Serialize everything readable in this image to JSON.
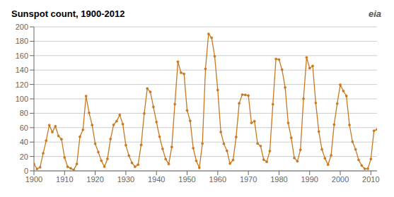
{
  "chart_data": {
    "type": "line",
    "title": "Sunspot count, 1900-2012",
    "annotations": [
      "eia"
    ],
    "x": [
      1900,
      1901,
      1902,
      1903,
      1904,
      1905,
      1906,
      1907,
      1908,
      1909,
      1910,
      1911,
      1912,
      1913,
      1914,
      1915,
      1916,
      1917,
      1918,
      1919,
      1920,
      1921,
      1922,
      1923,
      1924,
      1925,
      1926,
      1927,
      1928,
      1929,
      1930,
      1931,
      1932,
      1933,
      1934,
      1935,
      1936,
      1937,
      1938,
      1939,
      1940,
      1941,
      1942,
      1943,
      1944,
      1945,
      1946,
      1947,
      1948,
      1949,
      1950,
      1951,
      1952,
      1953,
      1954,
      1955,
      1956,
      1957,
      1958,
      1959,
      1960,
      1961,
      1962,
      1963,
      1964,
      1965,
      1966,
      1967,
      1968,
      1969,
      1970,
      1971,
      1972,
      1973,
      1974,
      1975,
      1976,
      1977,
      1978,
      1979,
      1980,
      1981,
      1982,
      1983,
      1984,
      1985,
      1986,
      1987,
      1988,
      1989,
      1990,
      1991,
      1992,
      1993,
      1994,
      1995,
      1996,
      1997,
      1998,
      1999,
      2000,
      2001,
      2002,
      2003,
      2004,
      2005,
      2006,
      2007,
      2008,
      2009,
      2010,
      2011,
      2012
    ],
    "values": [
      9.5,
      2.7,
      5.0,
      24.4,
      42.0,
      63.5,
      53.8,
      62.0,
      48.5,
      43.9,
      18.6,
      5.7,
      3.6,
      1.4,
      9.6,
      47.4,
      57.1,
      103.9,
      80.6,
      63.6,
      37.6,
      26.1,
      14.2,
      5.8,
      16.7,
      44.3,
      63.9,
      69.0,
      77.8,
      64.9,
      35.7,
      21.2,
      11.1,
      5.7,
      8.7,
      36.1,
      79.7,
      114.4,
      109.6,
      88.8,
      67.8,
      47.5,
      30.6,
      16.3,
      9.6,
      33.2,
      92.6,
      151.6,
      136.3,
      134.7,
      83.9,
      69.4,
      31.5,
      13.9,
      4.4,
      38.0,
      141.7,
      190.2,
      184.8,
      159.0,
      112.3,
      53.9,
      37.6,
      27.9,
      10.2,
      15.1,
      47.0,
      93.8,
      105.9,
      105.5,
      104.5,
      66.6,
      68.9,
      38.0,
      34.5,
      15.5,
      12.6,
      27.5,
      92.5,
      155.4,
      154.6,
      140.4,
      115.9,
      66.6,
      45.9,
      17.9,
      13.4,
      29.2,
      100.2,
      157.6,
      142.6,
      145.7,
      94.3,
      54.6,
      29.9,
      17.5,
      8.6,
      21.5,
      64.3,
      93.3,
      119.6,
      111.0,
      104.0,
      63.7,
      40.4,
      29.8,
      15.2,
      7.5,
      2.9,
      3.1,
      16.5,
      55.7,
      57.6
    ],
    "color": "#C87820",
    "marker": "circle",
    "xlim": [
      1900,
      2012
    ],
    "xticks": [
      1900,
      1910,
      1920,
      1930,
      1940,
      1950,
      1960,
      1970,
      1980,
      1990,
      2000,
      2010
    ],
    "ylim": [
      0,
      200
    ],
    "yticks": [
      0,
      20,
      40,
      60,
      80,
      100,
      120,
      140,
      160,
      180,
      200
    ],
    "grid": true
  }
}
